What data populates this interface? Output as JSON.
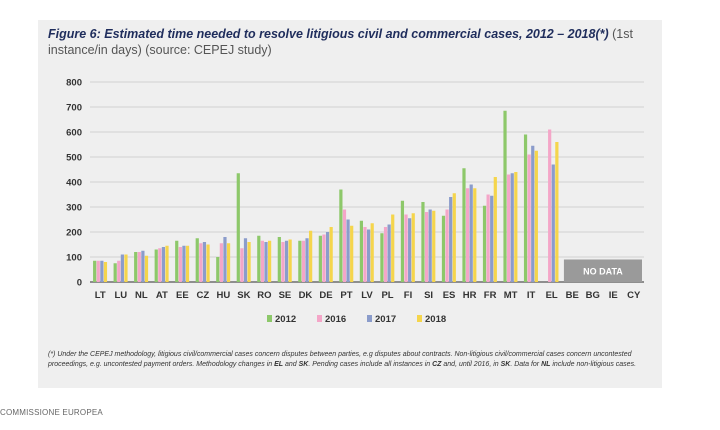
{
  "figure": {
    "title": "Figure 6: Estimated time needed to resolve litigious civil and commercial cases, 2012 – 2018(*)",
    "title_suffix_1": " (1st",
    "title_suffix_2": "instance/in days) (source: CEPEJ study)",
    "footnote": {
      "p1": "(*) Under the CEPEJ methodology, litigious civil/commercial cases concern disputes between parties, e.g disputes about contracts. Non-litigious civil/commercial cases concern uncontested proceedings, e.g. uncontested payment orders. Methodology changes in ",
      "b1": "EL",
      "p2": " and ",
      "b2": "SK",
      "p3": ". Pending cases include all instances in ",
      "b3": "CZ",
      "p4": " and, until 2016, in ",
      "b4": "SK",
      "p5": ". Data for ",
      "b5": "NL",
      "p6": " include non-litigious cases."
    }
  },
  "credit": "COMMISSIONE EUROPEA",
  "chart_data": {
    "type": "bar",
    "title": "Figure 6: Estimated time needed to resolve litigious civil and commercial cases, 2012 – 2018(*)",
    "ylim": [
      0,
      800
    ],
    "yticks": [
      0,
      100,
      200,
      300,
      400,
      500,
      600,
      700,
      800
    ],
    "grid": true,
    "legend": "bottom",
    "no_data_label": "NO DATA",
    "no_data_categories": [
      "BE",
      "BG",
      "IE",
      "CY"
    ],
    "categories": [
      "LT",
      "LU",
      "NL",
      "AT",
      "EE",
      "CZ",
      "HU",
      "SK",
      "RO",
      "SE",
      "DK",
      "DE",
      "PT",
      "LV",
      "PL",
      "FI",
      "SI",
      "ES",
      "HR",
      "FR",
      "MT",
      "IT",
      "EL",
      "BE",
      "BG",
      "IE",
      "CY"
    ],
    "series": [
      {
        "name": "2012",
        "color": "#8dc86a",
        "values": [
          85,
          75,
          120,
          130,
          165,
          175,
          100,
          435,
          185,
          180,
          165,
          185,
          370,
          245,
          195,
          325,
          320,
          265,
          455,
          305,
          685,
          590,
          null,
          null,
          null,
          null,
          null
        ]
      },
      {
        "name": "2016",
        "color": "#f4a6c8",
        "values": [
          85,
          85,
          120,
          135,
          140,
          155,
          155,
          135,
          165,
          160,
          165,
          190,
          290,
          220,
          220,
          270,
          280,
          290,
          375,
          350,
          430,
          510,
          610,
          null,
          null,
          null,
          null
        ]
      },
      {
        "name": "2017",
        "color": "#8b9ccb",
        "values": [
          85,
          110,
          125,
          140,
          145,
          160,
          180,
          175,
          160,
          165,
          175,
          200,
          250,
          210,
          230,
          255,
          290,
          340,
          390,
          345,
          435,
          545,
          470,
          null,
          null,
          null,
          null
        ]
      },
      {
        "name": "2018",
        "color": "#f5d54c",
        "values": [
          80,
          110,
          105,
          145,
          145,
          150,
          155,
          160,
          165,
          170,
          205,
          220,
          225,
          235,
          270,
          275,
          285,
          355,
          375,
          420,
          440,
          525,
          560,
          null,
          null,
          null,
          null
        ]
      }
    ]
  }
}
